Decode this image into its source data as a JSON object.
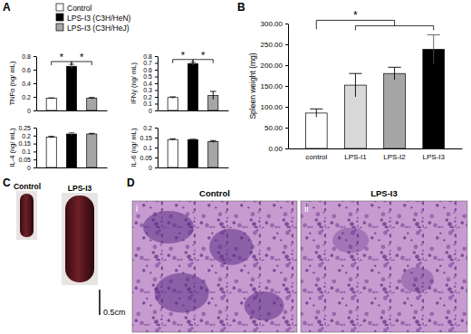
{
  "panel_labels": [
    "A",
    "B",
    "C",
    "D"
  ],
  "legend": [
    {
      "name": "Control",
      "color": "#ffffff"
    },
    {
      "name": "LPS-I3 (C3H/HeN)",
      "color": "#000000"
    },
    {
      "name": "LPS-I3 (C3H/HeJ)",
      "color": "#a6a6a6"
    }
  ],
  "chart_data": [
    {
      "type": "bar",
      "y_label": "TNFα (ng/ mL)",
      "categories": [
        null,
        null,
        null
      ],
      "values": [
        0.18,
        0.65,
        0.18
      ],
      "errors": [
        0.005,
        0.03,
        0.01
      ],
      "colors": [
        "#ffffff",
        "#000000",
        "#a6a6a6"
      ],
      "ylim": [
        0,
        0.8
      ],
      "yticks": [
        0,
        0.2,
        0.4,
        0.6,
        0.8
      ],
      "significance": [
        {
          "text": "*",
          "between": [
            [
              0
            ],
            [
              1
            ]
          ]
        },
        {
          "text": "*",
          "between": [
            [
              1
            ],
            [
              2
            ]
          ]
        }
      ]
    },
    {
      "type": "bar",
      "y_label": "IFNγ (ng/ mL)",
      "categories": [
        null,
        null,
        null
      ],
      "values": [
        0.19,
        0.69,
        0.22
      ],
      "errors": [
        0.01,
        0.02,
        0.06
      ],
      "colors": [
        "#ffffff",
        "#000000",
        "#a6a6a6"
      ],
      "ylim": [
        0,
        0.8
      ],
      "yticks": [
        0,
        0.1,
        0.2,
        0.3,
        0.4,
        0.5,
        0.6,
        0.7,
        0.8
      ],
      "significance": [
        {
          "text": "*",
          "between": [
            [
              0
            ],
            [
              1
            ]
          ]
        },
        {
          "text": "*",
          "between": [
            [
              1
            ],
            [
              2
            ]
          ]
        }
      ]
    },
    {
      "type": "bar",
      "y_label": "IL-4 (ng/ mL)",
      "categories": [
        null,
        null,
        null
      ],
      "values": [
        0.19,
        0.21,
        0.21
      ],
      "errors": [
        0.005,
        0.008,
        0.004
      ],
      "colors": [
        "#ffffff",
        "#000000",
        "#a6a6a6"
      ],
      "ylim": [
        0,
        0.25
      ],
      "yticks": [
        0,
        0.05,
        0.1,
        0.15,
        0.2,
        0.25
      ]
    },
    {
      "type": "bar",
      "y_label": "IL-6 (ng/ mL)",
      "categories": [
        null,
        null,
        null
      ],
      "values": [
        0.14,
        0.14,
        0.13
      ],
      "errors": [
        0.004,
        0.003,
        0.005
      ],
      "colors": [
        "#ffffff",
        "#000000",
        "#a6a6a6"
      ],
      "ylim": [
        0,
        0.2
      ],
      "yticks": [
        0,
        0.05,
        0.1,
        0.15,
        0.2
      ]
    },
    {
      "type": "bar",
      "y_label": "Spleen weight (mg)",
      "categories": [
        "control",
        "LPS-I1",
        "LPS-I2",
        "LPS-I3"
      ],
      "values": [
        85,
        152,
        180,
        238
      ],
      "errors": [
        10,
        28,
        15,
        35
      ],
      "colors": [
        "#ffffff",
        "#d9d9d9",
        "#a6a6a6",
        "#000000"
      ],
      "ylim": [
        0,
        300
      ],
      "yticks": [
        {
          "value": 0,
          "label": "0.00"
        },
        {
          "value": 50,
          "label": "50.00"
        },
        {
          "value": 100,
          "label": "100.00"
        },
        {
          "value": 150,
          "label": "150.00"
        },
        {
          "value": 200,
          "label": "200.00"
        },
        {
          "value": 250,
          "label": "250.00"
        },
        {
          "value": 300,
          "label": "300.00"
        }
      ],
      "significance": [
        {
          "text": "*",
          "between": [
            [
              0
            ],
            [
              1,
              2,
              3
            ]
          ]
        }
      ]
    }
  ],
  "spleen_photos": {
    "labels": [
      "Control",
      "LPS-I3"
    ],
    "scale_bar": "0.5cm"
  },
  "histology": {
    "panels": [
      {
        "numeral": "i",
        "label": "Control"
      },
      {
        "numeral": "ii",
        "label": "LPS-I3"
      }
    ]
  }
}
